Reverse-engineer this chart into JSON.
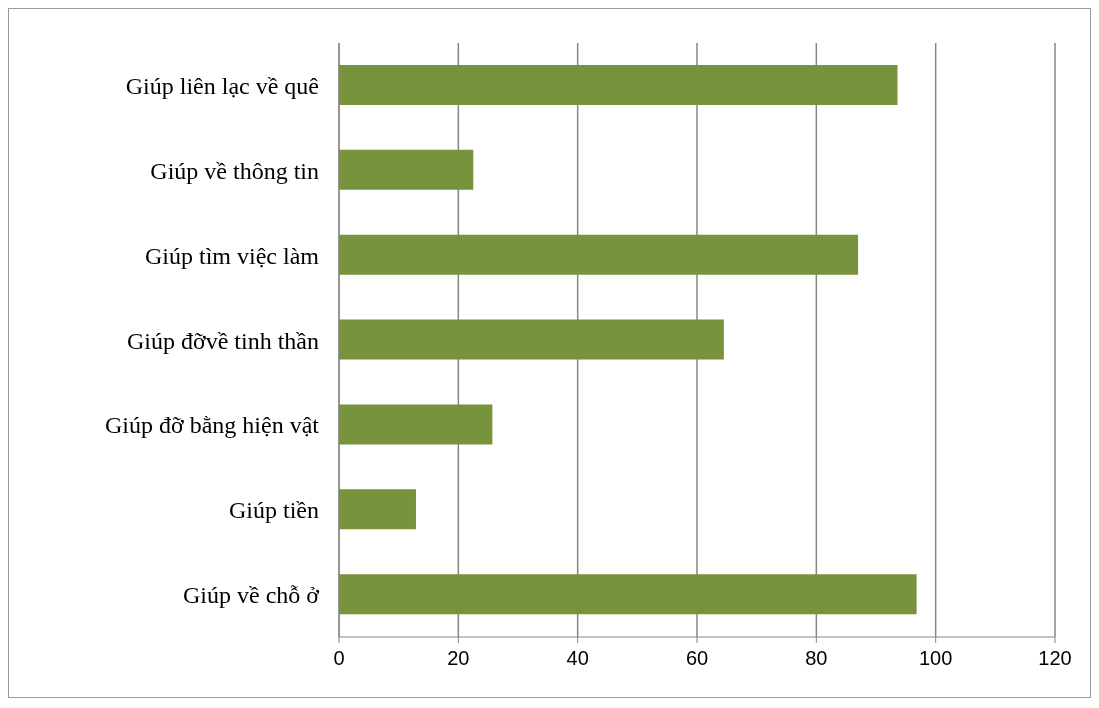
{
  "chart_data": {
    "type": "bar",
    "orientation": "horizontal",
    "categories": [
      "Giúp liên lạc về quê",
      "Giúp về thông tin",
      "Giúp tìm việc làm",
      "Giúp đỡvề tinh thần",
      "Giúp đỡ bằng hiện vật",
      "Giúp tiền",
      "Giúp về chỗ ở"
    ],
    "values": [
      93.6,
      22.5,
      87,
      64.5,
      25.7,
      12.9,
      96.8
    ],
    "color": "#77933c",
    "xlim": [
      0,
      120
    ],
    "xticks": [
      0,
      20,
      40,
      60,
      80,
      100,
      120
    ],
    "grid": "x",
    "legend": false
  }
}
